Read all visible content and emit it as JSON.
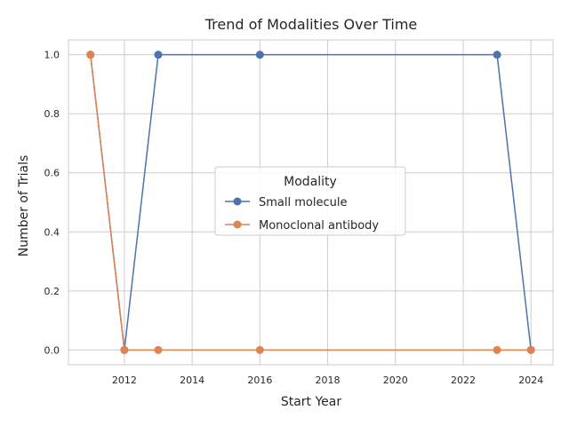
{
  "chart_data": {
    "type": "line",
    "title": "Trend of Modalities Over Time",
    "xlabel": "Start Year",
    "ylabel": "Number of Trials",
    "xlim": [
      2010.35,
      2024.65
    ],
    "ylim": [
      -0.05,
      1.05
    ],
    "xticks": [
      2012,
      2014,
      2016,
      2018,
      2020,
      2022,
      2024
    ],
    "yticks": [
      0.0,
      0.2,
      0.4,
      0.6,
      0.8,
      1.0
    ],
    "ytick_labels": [
      "0.0",
      "0.2",
      "0.4",
      "0.6",
      "0.8",
      "1.0"
    ],
    "grid": true,
    "legend": {
      "title": "Modality",
      "placement": "center-right"
    },
    "series": [
      {
        "name": "Small molecule",
        "color": "#4c72b0",
        "x": [
          2011,
          2012,
          2013,
          2016,
          2023,
          2024
        ],
        "y": [
          1,
          0,
          1,
          1,
          1,
          0
        ]
      },
      {
        "name": "Monoclonal antibody",
        "color": "#dd8452",
        "x": [
          2011,
          2012,
          2013,
          2016,
          2023,
          2024
        ],
        "y": [
          1,
          0,
          0,
          0,
          0,
          0
        ]
      }
    ]
  }
}
